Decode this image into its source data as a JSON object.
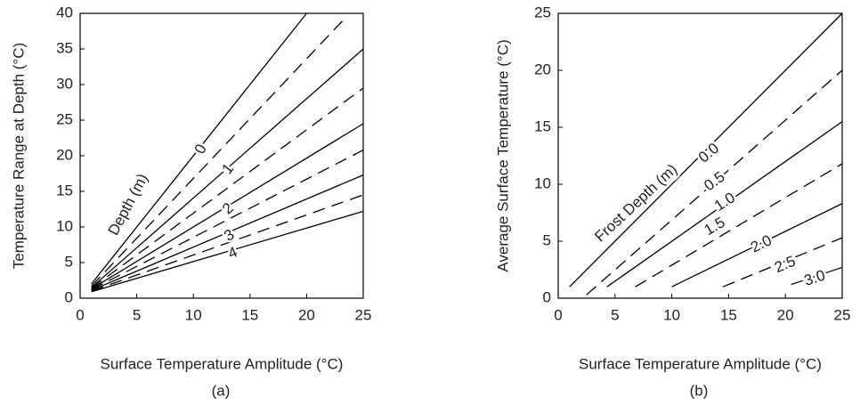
{
  "chart_data": [
    {
      "type": "line",
      "caption": "(a)",
      "xlabel": "Surface Temperature Amplitude (°C)",
      "ylabel": "Temperature Range at Depth (°C)",
      "annotation": "Depth (m)",
      "xlim": [
        0,
        25
      ],
      "ylim": [
        0,
        40
      ],
      "xticks": [
        0,
        5,
        10,
        15,
        20,
        25
      ],
      "yticks": [
        0,
        5,
        10,
        15,
        20,
        25,
        30,
        35,
        40
      ],
      "series": [
        {
          "name": "0",
          "style": "solid",
          "color": "#000000",
          "x": [
            1,
            20
          ],
          "values": [
            2,
            40
          ]
        },
        {
          "style": "dashed",
          "color": "#000000",
          "x": [
            1,
            23.5
          ],
          "values": [
            1.7,
            39.5
          ]
        },
        {
          "name": "1",
          "style": "solid",
          "color": "#000000",
          "x": [
            1,
            25
          ],
          "values": [
            1.5,
            35
          ]
        },
        {
          "style": "dashed",
          "color": "#000000",
          "x": [
            1,
            25
          ],
          "values": [
            1.4,
            29.5
          ]
        },
        {
          "name": "2",
          "style": "solid",
          "color": "#000000",
          "x": [
            1,
            25
          ],
          "values": [
            1.3,
            24.5
          ]
        },
        {
          "style": "dashed",
          "color": "#000000",
          "x": [
            1,
            25
          ],
          "values": [
            1.2,
            20.8
          ]
        },
        {
          "name": "3",
          "style": "solid",
          "color": "#000000",
          "x": [
            1,
            25
          ],
          "values": [
            1.1,
            17.3
          ]
        },
        {
          "style": "dashed",
          "color": "#000000",
          "x": [
            1,
            25
          ],
          "values": [
            1,
            14.5
          ]
        },
        {
          "name": "4",
          "style": "solid",
          "color": "#000000",
          "x": [
            1,
            25
          ],
          "values": [
            0.9,
            12.2
          ]
        }
      ]
    },
    {
      "type": "line",
      "caption": "(b)",
      "xlabel": "Surface Temperature Amplitude (°C)",
      "ylabel": "Average Surface Temperature (°C)",
      "annotation": "Frost Depth (m)",
      "xlim": [
        0,
        25
      ],
      "ylim": [
        0,
        25
      ],
      "xticks": [
        0,
        5,
        10,
        15,
        20,
        25
      ],
      "yticks": [
        0,
        5,
        10,
        15,
        20,
        25
      ],
      "series": [
        {
          "name": "0.0",
          "style": "solid",
          "color": "#000000",
          "x": [
            1,
            25
          ],
          "values": [
            1,
            25
          ]
        },
        {
          "name": "0.5",
          "style": "dashed",
          "color": "#000000",
          "x": [
            2.5,
            25
          ],
          "values": [
            0.3,
            20
          ]
        },
        {
          "name": "1.0",
          "style": "solid",
          "color": "#000000",
          "x": [
            4.3,
            25
          ],
          "values": [
            1,
            15.5
          ]
        },
        {
          "name": "1.5",
          "style": "dashed",
          "color": "#000000",
          "x": [
            6.8,
            25
          ],
          "values": [
            1,
            11.8
          ]
        },
        {
          "name": "2.0",
          "style": "solid",
          "color": "#000000",
          "x": [
            10,
            25
          ],
          "values": [
            1,
            8.3
          ]
        },
        {
          "name": "2.5",
          "style": "dashed",
          "color": "#000000",
          "x": [
            14.5,
            25
          ],
          "values": [
            1,
            5.3
          ]
        },
        {
          "name": "3.0",
          "style": "solid",
          "color": "#000000",
          "x": [
            20.5,
            25
          ],
          "values": [
            1.2,
            2.7
          ]
        }
      ]
    }
  ]
}
